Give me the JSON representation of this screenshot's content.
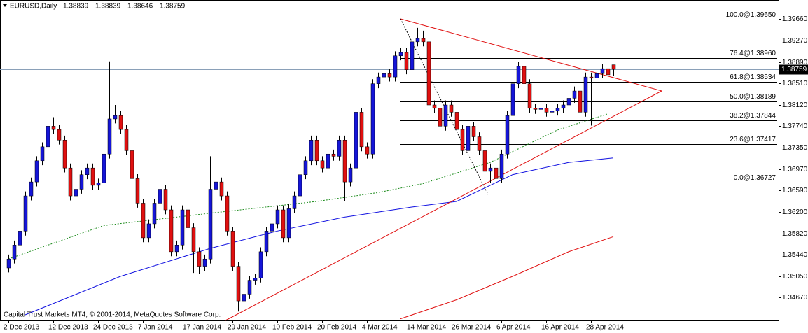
{
  "chart_data": {
    "type": "candlestick",
    "title": "EURUSD,Daily",
    "footer": "Capital Trust Markets MT4, © 2001-2014, MetaQuotes Software Corp.",
    "up_color": "#1515d8",
    "down_color": "#e01010",
    "categories": [
      "2 Dec 2013",
      null,
      null,
      null,
      null,
      null,
      null,
      null,
      "12 Dec 2013",
      null,
      null,
      null,
      null,
      null,
      null,
      null,
      "24 Dec 2013",
      null,
      null,
      null,
      null,
      null,
      null,
      null,
      "7 Jan 2014",
      null,
      null,
      null,
      null,
      null,
      null,
      null,
      "17 Jan 2014",
      null,
      null,
      null,
      null,
      null,
      null,
      null,
      "29 Jan 2014",
      null,
      null,
      null,
      null,
      null,
      null,
      null,
      "10 Feb 2014",
      null,
      null,
      null,
      null,
      null,
      null,
      null,
      "20 Feb 2014",
      null,
      null,
      null,
      null,
      null,
      null,
      null,
      "4 Mar 2014",
      null,
      null,
      null,
      null,
      null,
      null,
      null,
      "14 Mar 2014",
      null,
      null,
      null,
      null,
      null,
      null,
      null,
      "26 Mar 2014",
      null,
      null,
      null,
      null,
      null,
      null,
      null,
      "6 Apr 2014",
      null,
      null,
      null,
      null,
      null,
      null,
      null,
      "16 Apr 2014",
      null,
      null,
      null,
      null,
      null,
      null,
      null,
      "28 Apr 2014",
      null,
      null,
      null,
      null
    ],
    "open": [
      1.352,
      1.3536,
      1.3561,
      1.3586,
      1.3649,
      1.3674,
      1.3712,
      1.3737,
      1.3774,
      1.3768,
      1.3749,
      1.3699,
      1.3649,
      1.3661,
      1.3687,
      1.3699,
      1.3668,
      1.3672,
      1.3724,
      1.3787,
      1.3793,
      1.3768,
      1.373,
      1.368,
      1.3636,
      1.3574,
      1.3599,
      1.3636,
      1.3661,
      1.3624,
      1.3549,
      1.3561,
      1.3624,
      1.3592,
      1.3549,
      1.3523,
      1.3536,
      1.3661,
      1.3674,
      1.3649,
      1.3586,
      1.3523,
      1.3461,
      1.3473,
      1.3498,
      1.3502,
      1.3549,
      1.3586,
      1.3599,
      1.3624,
      1.3574,
      1.3626,
      1.3649,
      1.3687,
      1.3712,
      1.3749,
      1.3712,
      1.3699,
      1.3724,
      1.372,
      1.3749,
      1.3674,
      1.3699,
      1.3799,
      1.3737,
      1.3724,
      1.385,
      1.3862,
      1.3868,
      1.3862,
      1.39,
      1.3906,
      1.3875,
      1.3925,
      1.3931,
      1.3925,
      1.3812,
      1.3806,
      1.3774,
      1.3812,
      1.3799,
      1.3768,
      1.373,
      1.3774,
      1.3755,
      1.373,
      1.3693,
      1.3699,
      1.368,
      1.3724,
      1.3793,
      1.385,
      1.3881,
      1.385,
      1.3806,
      1.3804,
      1.3806,
      1.3799,
      1.3801,
      1.3806,
      1.3812,
      1.3824,
      1.3837,
      1.3799,
      1.3862,
      1.386,
      1.3868,
      1.3877,
      1.38839
    ],
    "high": [
      1.3544,
      1.3569,
      1.3594,
      1.3657,
      1.3682,
      1.372,
      1.3745,
      1.38,
      1.379,
      1.3776,
      1.3757,
      1.3707,
      1.3669,
      1.3695,
      1.3707,
      1.3707,
      1.368,
      1.3732,
      1.389,
      1.3812,
      1.3801,
      1.3776,
      1.3738,
      1.3688,
      1.3644,
      1.3607,
      1.3644,
      1.3669,
      1.3669,
      1.3632,
      1.3569,
      1.3632,
      1.3632,
      1.36,
      1.3557,
      1.3544,
      1.372,
      1.3682,
      1.3682,
      1.3657,
      1.3594,
      1.3531,
      1.3481,
      1.3506,
      1.351,
      1.3557,
      1.3594,
      1.3607,
      1.3632,
      1.3632,
      1.3634,
      1.3657,
      1.3695,
      1.372,
      1.3757,
      1.3757,
      1.372,
      1.3732,
      1.3732,
      1.3757,
      1.3757,
      1.3707,
      1.3807,
      1.3807,
      1.3745,
      1.3858,
      1.387,
      1.3876,
      1.3876,
      1.3908,
      1.3914,
      1.3914,
      1.3933,
      1.395,
      1.3945,
      1.3933,
      1.382,
      1.3814,
      1.382,
      1.382,
      1.3807,
      1.3776,
      1.3782,
      1.3782,
      1.3763,
      1.3738,
      1.3707,
      1.3707,
      1.3732,
      1.3801,
      1.3858,
      1.3889,
      1.3889,
      1.3858,
      1.3814,
      1.3814,
      1.3814,
      1.3809,
      1.3814,
      1.382,
      1.3832,
      1.3845,
      1.3845,
      1.387,
      1.387,
      1.388,
      1.3885,
      1.3885,
      1.38839
    ],
    "low": [
      1.3512,
      1.3528,
      1.3553,
      1.3578,
      1.3641,
      1.3666,
      1.3704,
      1.3729,
      1.376,
      1.3741,
      1.3691,
      1.3641,
      1.363,
      1.3653,
      1.3679,
      1.366,
      1.366,
      1.3664,
      1.3716,
      1.3779,
      1.376,
      1.3722,
      1.3672,
      1.3628,
      1.3566,
      1.3566,
      1.3591,
      1.3628,
      1.3616,
      1.3541,
      1.3541,
      1.3553,
      1.3584,
      1.3511,
      1.3509,
      1.3515,
      1.3528,
      1.3653,
      1.3641,
      1.3578,
      1.3515,
      1.3442,
      1.3453,
      1.3465,
      1.349,
      1.3494,
      1.3541,
      1.3578,
      1.3591,
      1.3566,
      1.3566,
      1.3618,
      1.3641,
      1.3679,
      1.3704,
      1.3704,
      1.3691,
      1.3691,
      1.3712,
      1.3712,
      1.364,
      1.3666,
      1.3691,
      1.3729,
      1.3716,
      1.3716,
      1.3842,
      1.3854,
      1.3854,
      1.3854,
      1.3892,
      1.3867,
      1.3867,
      1.3917,
      1.3917,
      1.3804,
      1.3798,
      1.375,
      1.3766,
      1.3791,
      1.376,
      1.3722,
      1.3722,
      1.3747,
      1.3722,
      1.3685,
      1.3672,
      1.3672,
      1.3672,
      1.3716,
      1.3785,
      1.3842,
      1.3842,
      1.3798,
      1.3796,
      1.3796,
      1.3791,
      1.3791,
      1.3793,
      1.3798,
      1.3804,
      1.3816,
      1.3791,
      1.3791,
      1.3775,
      1.3852,
      1.386,
      1.3858,
      1.38646
    ],
    "close": [
      1.3536,
      1.3561,
      1.3586,
      1.3649,
      1.3674,
      1.3712,
      1.3737,
      1.3774,
      1.3768,
      1.3749,
      1.3699,
      1.3649,
      1.3661,
      1.3687,
      1.3699,
      1.3668,
      1.3672,
      1.3724,
      1.3787,
      1.3793,
      1.3768,
      1.373,
      1.368,
      1.3636,
      1.3574,
      1.3599,
      1.3636,
      1.3661,
      1.3624,
      1.3549,
      1.3561,
      1.3624,
      1.3592,
      1.3549,
      1.3523,
      1.3536,
      1.3661,
      1.3674,
      1.3649,
      1.3586,
      1.3523,
      1.3461,
      1.3473,
      1.3498,
      1.3502,
      1.3549,
      1.3586,
      1.3599,
      1.3624,
      1.3574,
      1.3626,
      1.3649,
      1.3687,
      1.3712,
      1.3749,
      1.3712,
      1.3699,
      1.3724,
      1.372,
      1.3749,
      1.3674,
      1.3699,
      1.3799,
      1.3737,
      1.3724,
      1.385,
      1.3862,
      1.3868,
      1.3862,
      1.39,
      1.3906,
      1.3875,
      1.3925,
      1.3931,
      1.3925,
      1.3812,
      1.3806,
      1.3774,
      1.3812,
      1.3799,
      1.3768,
      1.373,
      1.3774,
      1.3755,
      1.373,
      1.3693,
      1.3699,
      1.368,
      1.3724,
      1.3793,
      1.385,
      1.3881,
      1.385,
      1.3806,
      1.3804,
      1.3806,
      1.3799,
      1.3801,
      1.3806,
      1.3812,
      1.3824,
      1.3837,
      1.3799,
      1.3862,
      1.386,
      1.3868,
      1.3877,
      1.3866,
      1.38759
    ],
    "ylim": [
      1.3426,
      1.4
    ],
    "yticks": [
      {
        "value": 1.3966,
        "label": "1.39660"
      },
      {
        "value": 1.3927,
        "label": "1.39270"
      },
      {
        "value": 1.3889,
        "label": "1.38890"
      },
      {
        "value": 1.3851,
        "label": "1.38510"
      },
      {
        "value": 1.3812,
        "label": "1.38120"
      },
      {
        "value": 1.3774,
        "label": "1.37740"
      },
      {
        "value": 1.3735,
        "label": "1.37350"
      },
      {
        "value": 1.3697,
        "label": "1.36970"
      },
      {
        "value": 1.3659,
        "label": "1.36590"
      },
      {
        "value": 1.362,
        "label": "1.36200"
      },
      {
        "value": 1.3582,
        "label": "1.35820"
      },
      {
        "value": 1.3544,
        "label": "1.35440"
      },
      {
        "value": 1.3505,
        "label": "1.35050"
      },
      {
        "value": 1.3467,
        "label": "1.34670"
      }
    ],
    "overlays": [
      {
        "color": "#1a8a1a",
        "dashed": true,
        "x": [
          0,
          17,
          36,
          55,
          66,
          74,
          86,
          98,
          107
        ],
        "values": [
          1.3536,
          1.3596,
          1.3618,
          1.3639,
          1.3655,
          1.3671,
          1.3709,
          1.3767,
          1.3796
        ]
      },
      {
        "color": "#1010e0",
        "dashed": false,
        "x": [
          3,
          20,
          36,
          48,
          60,
          72,
          80,
          90,
          100,
          108
        ],
        "values": [
          1.3436,
          1.3505,
          1.3555,
          1.3586,
          1.3611,
          1.3629,
          1.3639,
          1.3687,
          1.3709,
          1.3717
        ]
      },
      {
        "color": "#e01010",
        "dashed": false,
        "x": [
          70,
          80,
          90,
          100,
          108
        ],
        "values": [
          1.3429,
          1.3463,
          1.3505,
          1.3549,
          1.3576
        ]
      }
    ],
    "fibonacci": [
      {
        "value": 1.3965,
        "label": "100.0@1.39650"
      },
      {
        "value": 1.3896,
        "label": "76.4@1.38960"
      },
      {
        "value": 1.38534,
        "label": "61.8@1.38534"
      },
      {
        "value": 1.38189,
        "label": "50.0@1.38189"
      },
      {
        "value": 1.37844,
        "label": "38.2@1.37844"
      },
      {
        "value": 1.37417,
        "label": "23.6@1.37417"
      },
      {
        "value": 1.36727,
        "label": "0.0@1.36727"
      }
    ]
  }
}
